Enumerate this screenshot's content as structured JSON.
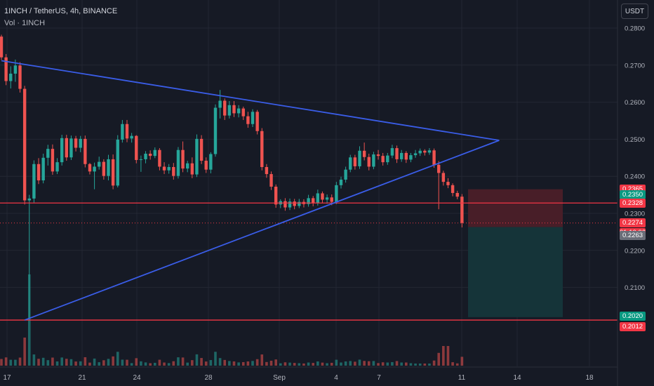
{
  "header": {
    "symbol_line": "1INCH / TetherUS, 4h, BINANCE",
    "volume_line": "Vol · 1INCH"
  },
  "currency_button": "USDT",
  "colors": {
    "background": "#161a25",
    "grid": "#232733",
    "up": "#26a69a",
    "down": "#ef5350",
    "trendline": "#3a5de8",
    "horizontal_line": "#f23645",
    "stop_zone": "#4b1f28",
    "target_zone": "#15363a",
    "axis_text": "#b2b5be"
  },
  "price_axis_labels": [
    "0.2800",
    "0.2700",
    "0.2600",
    "0.2500",
    "0.2400",
    "0.2300",
    "0.2200",
    "0.2100"
  ],
  "time_axis_labels": [
    "17",
    "21",
    "24",
    "28",
    "Sep",
    "4",
    "7",
    "11",
    "14",
    "18"
  ],
  "price_tags": {
    "stop": "0.2365",
    "entry": "0.2350",
    "horizontal_line": "0.2328",
    "last_price": "0.2274",
    "countdown": "01:10:06",
    "target_top": "0.2263",
    "target": "0.2020",
    "support_line": "0.2012"
  },
  "chart_data": {
    "type": "candlestick",
    "symbol": "1INCH / TetherUS",
    "interval": "4h",
    "exchange": "BINANCE",
    "y_axis": {
      "range": [
        0.1935,
        0.2838
      ],
      "ticks": [
        0.28,
        0.27,
        0.26,
        0.25,
        0.24,
        0.23,
        0.22,
        0.21
      ]
    },
    "x_axis": {
      "ticks": [
        "17",
        "21",
        "24",
        "28",
        "Sep",
        "4",
        "7",
        "11",
        "14",
        "18"
      ]
    },
    "last_price": 0.2274,
    "horizontal_lines": [
      0.2328,
      0.2012
    ],
    "triangle_pattern": {
      "upper_line": [
        [
          0,
          0.2712
        ],
        [
          107,
          0.2497
        ]
      ],
      "lower_line": [
        [
          5,
          0.2012
        ],
        [
          107,
          0.2497
        ]
      ]
    },
    "short_position": {
      "entry": 0.235,
      "stop": 0.2365,
      "target": 0.202,
      "zone_top": 0.2263
    },
    "candles": [
      [
        0.2777,
        0.2782,
        0.2714,
        0.2721
      ],
      [
        0.2721,
        0.273,
        0.2646,
        0.2657
      ],
      [
        0.2657,
        0.2697,
        0.2637,
        0.2677
      ],
      [
        0.2677,
        0.2715,
        0.2655,
        0.2699
      ],
      [
        0.2699,
        0.2708,
        0.2626,
        0.2636
      ],
      [
        0.2636,
        0.2644,
        0.2324,
        0.2335
      ],
      [
        0.2335,
        0.235,
        0.2012,
        0.234
      ],
      [
        0.234,
        0.2443,
        0.2329,
        0.2433
      ],
      [
        0.2433,
        0.2449,
        0.2379,
        0.2389
      ],
      [
        0.2389,
        0.2461,
        0.2381,
        0.245
      ],
      [
        0.245,
        0.2485,
        0.2429,
        0.2474
      ],
      [
        0.2474,
        0.2486,
        0.2404,
        0.2413
      ],
      [
        0.2413,
        0.2449,
        0.2406,
        0.2438
      ],
      [
        0.2438,
        0.2512,
        0.2429,
        0.2503
      ],
      [
        0.2503,
        0.2512,
        0.2442,
        0.2451
      ],
      [
        0.2451,
        0.251,
        0.2444,
        0.2502
      ],
      [
        0.2502,
        0.2509,
        0.2467,
        0.2477
      ],
      [
        0.2477,
        0.2509,
        0.2465,
        0.2501
      ],
      [
        0.2501,
        0.251,
        0.2424,
        0.2433
      ],
      [
        0.2433,
        0.2436,
        0.2405,
        0.2413
      ],
      [
        0.2413,
        0.2437,
        0.2365,
        0.2426
      ],
      [
        0.2426,
        0.2453,
        0.2418,
        0.2439
      ],
      [
        0.2439,
        0.2446,
        0.2391,
        0.2401
      ],
      [
        0.2401,
        0.2458,
        0.2389,
        0.2446
      ],
      [
        0.2446,
        0.2459,
        0.2365,
        0.2375
      ],
      [
        0.2375,
        0.2511,
        0.237,
        0.2499
      ],
      [
        0.2499,
        0.2552,
        0.2491,
        0.2541
      ],
      [
        0.2541,
        0.2552,
        0.2492,
        0.2502
      ],
      [
        0.2502,
        0.2517,
        0.2491,
        0.2509
      ],
      [
        0.2509,
        0.2511,
        0.2435,
        0.2444
      ],
      [
        0.2444,
        0.2456,
        0.2412,
        0.2446
      ],
      [
        0.2446,
        0.2468,
        0.2435,
        0.2461
      ],
      [
        0.2461,
        0.247,
        0.2445,
        0.2455
      ],
      [
        0.2455,
        0.2478,
        0.2449,
        0.2471
      ],
      [
        0.2471,
        0.2476,
        0.2416,
        0.2426
      ],
      [
        0.2426,
        0.2438,
        0.2406,
        0.2416
      ],
      [
        0.2416,
        0.2433,
        0.2407,
        0.2425
      ],
      [
        0.2425,
        0.2436,
        0.2391,
        0.2401
      ],
      [
        0.2401,
        0.2479,
        0.2394,
        0.2471
      ],
      [
        0.2471,
        0.2494,
        0.2411,
        0.2421
      ],
      [
        0.2421,
        0.2442,
        0.2411,
        0.2435
      ],
      [
        0.2435,
        0.2451,
        0.2395,
        0.2405
      ],
      [
        0.2405,
        0.2513,
        0.2398,
        0.2501
      ],
      [
        0.2501,
        0.2511,
        0.2433,
        0.2442
      ],
      [
        0.2442,
        0.2451,
        0.2409,
        0.2418
      ],
      [
        0.2418,
        0.2465,
        0.2408,
        0.246
      ],
      [
        0.246,
        0.2594,
        0.2453,
        0.2585
      ],
      [
        0.2585,
        0.2633,
        0.2556,
        0.2604
      ],
      [
        0.2604,
        0.261,
        0.2552,
        0.2564
      ],
      [
        0.2564,
        0.2603,
        0.2556,
        0.2592
      ],
      [
        0.2592,
        0.2603,
        0.256,
        0.257
      ],
      [
        0.257,
        0.2592,
        0.2559,
        0.2583
      ],
      [
        0.2583,
        0.2588,
        0.2552,
        0.2562
      ],
      [
        0.2562,
        0.2574,
        0.2531,
        0.2541
      ],
      [
        0.2541,
        0.2581,
        0.2533,
        0.2574
      ],
      [
        0.2574,
        0.2579,
        0.2513,
        0.2522
      ],
      [
        0.2522,
        0.253,
        0.2416,
        0.2425
      ],
      [
        0.2425,
        0.2433,
        0.2396,
        0.2406
      ],
      [
        0.2406,
        0.2413,
        0.2363,
        0.2372
      ],
      [
        0.2372,
        0.2378,
        0.2315,
        0.2324
      ],
      [
        0.2324,
        0.2338,
        0.2314,
        0.2333
      ],
      [
        0.2333,
        0.2341,
        0.2307,
        0.2316
      ],
      [
        0.2316,
        0.234,
        0.2309,
        0.2332
      ],
      [
        0.2332,
        0.2339,
        0.2311,
        0.232
      ],
      [
        0.232,
        0.2339,
        0.2314,
        0.2331
      ],
      [
        0.2331,
        0.2338,
        0.2316,
        0.2325
      ],
      [
        0.2325,
        0.235,
        0.2318,
        0.2341
      ],
      [
        0.2341,
        0.2347,
        0.2319,
        0.2328
      ],
      [
        0.2328,
        0.2364,
        0.2321,
        0.2354
      ],
      [
        0.2354,
        0.2359,
        0.2328,
        0.2337
      ],
      [
        0.2337,
        0.2351,
        0.2326,
        0.2343
      ],
      [
        0.2343,
        0.2351,
        0.2322,
        0.2331
      ],
      [
        0.2331,
        0.2385,
        0.2325,
        0.2376
      ],
      [
        0.2376,
        0.2399,
        0.2367,
        0.2391
      ],
      [
        0.2391,
        0.2426,
        0.2383,
        0.2418
      ],
      [
        0.2418,
        0.2458,
        0.2411,
        0.2451
      ],
      [
        0.2451,
        0.2458,
        0.2418,
        0.2427
      ],
      [
        0.2427,
        0.2481,
        0.242,
        0.2469
      ],
      [
        0.2469,
        0.2491,
        0.2443,
        0.2452
      ],
      [
        0.2452,
        0.2461,
        0.2416,
        0.2426
      ],
      [
        0.2426,
        0.2466,
        0.2419,
        0.2459
      ],
      [
        0.2459,
        0.2471,
        0.2445,
        0.2455
      ],
      [
        0.2455,
        0.2463,
        0.2429,
        0.2438
      ],
      [
        0.2438,
        0.2463,
        0.2431,
        0.2456
      ],
      [
        0.2456,
        0.2485,
        0.2449,
        0.2476
      ],
      [
        0.2476,
        0.2483,
        0.2436,
        0.2446
      ],
      [
        0.2446,
        0.2471,
        0.2439,
        0.2463
      ],
      [
        0.2463,
        0.2468,
        0.2436,
        0.2445
      ],
      [
        0.2445,
        0.2463,
        0.2438,
        0.2457
      ],
      [
        0.2457,
        0.2471,
        0.245,
        0.2462
      ],
      [
        0.2462,
        0.2475,
        0.2455,
        0.2469
      ],
      [
        0.2469,
        0.2473,
        0.2456,
        0.2464
      ],
      [
        0.2464,
        0.2476,
        0.2458,
        0.247
      ],
      [
        0.247,
        0.2475,
        0.2423,
        0.2431
      ],
      [
        0.2431,
        0.2441,
        0.2311,
        0.2409
      ],
      [
        0.2409,
        0.2415,
        0.2375,
        0.2385
      ],
      [
        0.2385,
        0.2395,
        0.2368,
        0.2376
      ],
      [
        0.2376,
        0.2381,
        0.2346,
        0.2355
      ],
      [
        0.2355,
        0.2361,
        0.2338,
        0.2345
      ],
      [
        0.2345,
        0.2352,
        0.2262,
        0.2274
      ]
    ]
  }
}
